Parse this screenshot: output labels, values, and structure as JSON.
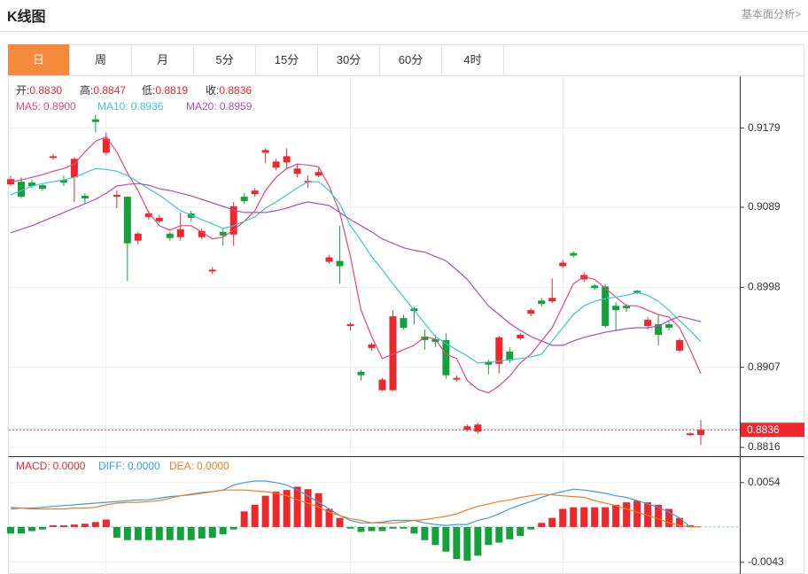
{
  "header": {
    "title": "K线图",
    "link": "基本面分析>"
  },
  "tabs": [
    "日",
    "周",
    "月",
    "5分",
    "15分",
    "30分",
    "60分",
    "4时"
  ],
  "active_tab": 0,
  "chart_data": [
    {
      "type": "candlestick",
      "info": [
        {
          "label": "开:",
          "value": "0.8830"
        },
        {
          "label": "高:",
          "value": "0.8847"
        },
        {
          "label": "低:",
          "value": "0.8819"
        },
        {
          "label": "收:",
          "value": "0.8836"
        }
      ],
      "up_color": "#f0262a",
      "down_color": "#13a23a",
      "ylim": [
        0.8806,
        0.9236
      ],
      "yticks": [
        0.9179,
        0.9089,
        0.8998,
        0.8907,
        0.8816
      ],
      "grid": true,
      "last_price": 0.8836,
      "candles": {
        "open": [
          0.9115,
          0.9118,
          0.9117,
          0.9114,
          0.9145,
          0.912,
          0.9123,
          0.9102,
          0.9189,
          0.9151,
          0.9101,
          0.9101,
          0.9051,
          0.9078,
          0.9073,
          0.9059,
          0.9055,
          0.9082,
          0.9055,
          0.9016,
          0.9061,
          0.9058,
          0.9101,
          0.9104,
          0.9151,
          0.9134,
          0.914,
          0.9127,
          0.9117,
          0.9125,
          0.9027,
          0.9028,
          0.8954,
          0.8902,
          0.8929,
          0.8881,
          0.8881,
          0.8963,
          0.8974,
          0.8942,
          0.8939,
          0.8938,
          0.8893,
          0.8836,
          0.8834,
          0.8913,
          0.8911,
          0.8925,
          0.894,
          0.8968,
          0.8983,
          0.8982,
          0.9022,
          0.9037,
          0.9007,
          0.9,
          0.8999,
          0.8977,
          0.8977,
          0.8994,
          0.8954,
          0.8956,
          0.8956,
          0.8926,
          0.883,
          0.883
        ],
        "high": [
          0.9125,
          0.9123,
          0.912,
          0.9116,
          0.915,
          0.9125,
          0.9146,
          0.9105,
          0.9194,
          0.9174,
          0.9108,
          0.9101,
          0.9061,
          0.9085,
          0.908,
          0.9061,
          0.9083,
          0.9085,
          0.9065,
          0.9021,
          0.9065,
          0.9095,
          0.9105,
          0.9111,
          0.9156,
          0.9144,
          0.9156,
          0.9139,
          0.9125,
          0.9133,
          0.9035,
          0.9068,
          0.8958,
          0.8904,
          0.8935,
          0.8895,
          0.8972,
          0.8967,
          0.8976,
          0.895,
          0.8944,
          0.8946,
          0.8898,
          0.8842,
          0.8844,
          0.8916,
          0.8943,
          0.893,
          0.8946,
          0.8974,
          0.8986,
          0.9008,
          0.9029,
          0.9039,
          0.9015,
          0.9002,
          0.9002,
          0.8981,
          0.8979,
          0.8995,
          0.8964,
          0.8967,
          0.8959,
          0.894,
          0.8833,
          0.8847
        ],
        "low": [
          0.9113,
          0.9099,
          0.9111,
          0.9108,
          0.9143,
          0.9113,
          0.9095,
          0.9093,
          0.9174,
          0.9148,
          0.9088,
          0.9005,
          0.9047,
          0.9075,
          0.9071,
          0.9051,
          0.9051,
          0.9073,
          0.9053,
          0.9013,
          0.9045,
          0.9045,
          0.9093,
          0.9101,
          0.9139,
          0.9131,
          0.9133,
          0.9123,
          0.9111,
          0.9123,
          0.9025,
          0.9002,
          0.8949,
          0.8892,
          0.8926,
          0.888,
          0.888,
          0.895,
          0.8956,
          0.8927,
          0.893,
          0.8894,
          0.8891,
          0.8834,
          0.8832,
          0.8899,
          0.89,
          0.8912,
          0.8938,
          0.8965,
          0.8976,
          0.898,
          0.902,
          0.9032,
          0.9004,
          0.8995,
          0.8952,
          0.8948,
          0.897,
          0.899,
          0.895,
          0.8932,
          0.8949,
          0.8924,
          0.8829,
          0.8819
        ],
        "close": [
          0.9121,
          0.9101,
          0.9113,
          0.911,
          0.9147,
          0.9117,
          0.9144,
          0.9099,
          0.9186,
          0.9167,
          0.9103,
          0.9048,
          0.9059,
          0.9082,
          0.9077,
          0.9054,
          0.9064,
          0.9077,
          0.9062,
          0.9018,
          0.9057,
          0.909,
          0.9096,
          0.9108,
          0.9154,
          0.9141,
          0.9147,
          0.9133,
          0.9119,
          0.9129,
          0.9032,
          0.9022,
          0.8956,
          0.8898,
          0.8933,
          0.8893,
          0.8965,
          0.8952,
          0.8971,
          0.8938,
          0.8936,
          0.8898,
          0.8895,
          0.884,
          0.8842,
          0.891,
          0.8941,
          0.8915,
          0.8944,
          0.8972,
          0.8979,
          0.8986,
          0.9026,
          0.9034,
          0.9012,
          0.8997,
          0.8954,
          0.8972,
          0.8974,
          0.8992,
          0.8961,
          0.8944,
          0.8952,
          0.8938,
          0.8832,
          0.8836
        ]
      },
      "series": [
        {
          "name": "MA5:",
          "last_label": "0.8900",
          "color": "#e5467a",
          "values": [
            0.9118,
            0.912,
            0.9123,
            0.9126,
            0.913,
            0.9133,
            0.9138,
            0.9152,
            0.9164,
            0.9169,
            0.9152,
            0.9128,
            0.9108,
            0.9083,
            0.9068,
            0.9063,
            0.9068,
            0.9068,
            0.9061,
            0.9053,
            0.9055,
            0.9063,
            0.9073,
            0.9085,
            0.9108,
            0.9123,
            0.9133,
            0.9138,
            0.9137,
            0.9135,
            0.9113,
            0.9083,
            0.9033,
            0.8972,
            0.8942,
            0.8917,
            0.8922,
            0.8927,
            0.8932,
            0.8942,
            0.8939,
            0.8922,
            0.8917,
            0.8892,
            0.8882,
            0.8878,
            0.8886,
            0.8897,
            0.8912,
            0.8922,
            0.8937,
            0.8952,
            0.8977,
            0.9002,
            0.901,
            0.9007,
            0.8997,
            0.8987,
            0.8977,
            0.8977,
            0.8972,
            0.8967,
            0.8964,
            0.8952,
            0.8927,
            0.89
          ]
        },
        {
          "name": "MA10:",
          "last_label": "0.8936",
          "color": "#3cc4d6",
          "values": [
            0.9103,
            0.9108,
            0.9113,
            0.9116,
            0.9118,
            0.912,
            0.9123,
            0.9128,
            0.9133,
            0.9132,
            0.913,
            0.9125,
            0.9118,
            0.911,
            0.9103,
            0.9094,
            0.9085,
            0.908,
            0.9075,
            0.907,
            0.9065,
            0.9068,
            0.9073,
            0.9078,
            0.9088,
            0.9095,
            0.9103,
            0.9111,
            0.9118,
            0.9118,
            0.9108,
            0.9093,
            0.9068,
            0.9051,
            0.9033,
            0.9018,
            0.9002,
            0.8987,
            0.8972,
            0.8957,
            0.8942,
            0.8934,
            0.8927,
            0.892,
            0.8912,
            0.8913,
            0.8914,
            0.8916,
            0.8917,
            0.8919,
            0.8922,
            0.8937,
            0.8952,
            0.8967,
            0.8977,
            0.8982,
            0.8985,
            0.8987,
            0.8989,
            0.8992,
            0.8989,
            0.8982,
            0.8972,
            0.896,
            0.8949,
            0.8936
          ]
        },
        {
          "name": "MA20:",
          "last_label": "0.8959",
          "color": "#b14cc3",
          "values": [
            0.906,
            0.9064,
            0.9068,
            0.9073,
            0.9078,
            0.9083,
            0.9088,
            0.9093,
            0.9098,
            0.9105,
            0.9113,
            0.9115,
            0.9116,
            0.9114,
            0.911,
            0.9108,
            0.9105,
            0.9102,
            0.9098,
            0.9094,
            0.909,
            0.9086,
            0.9083,
            0.9083,
            0.9083,
            0.9085,
            0.9088,
            0.9092,
            0.9095,
            0.9093,
            0.9091,
            0.9083,
            0.9075,
            0.9068,
            0.9061,
            0.9053,
            0.9048,
            0.9043,
            0.904,
            0.9038,
            0.9033,
            0.9028,
            0.9018,
            0.9007,
            0.8992,
            0.8977,
            0.8967,
            0.8957,
            0.8949,
            0.8942,
            0.8937,
            0.8932,
            0.8932,
            0.8937,
            0.8941,
            0.8944,
            0.8947,
            0.8949,
            0.8951,
            0.8952,
            0.8952,
            0.8954,
            0.896,
            0.8965,
            0.8962,
            0.8959
          ]
        }
      ]
    },
    {
      "type": "macd",
      "up_color": "#f0262a",
      "down_color": "#13a23a",
      "ylim": [
        -0.0054,
        0.0084
      ],
      "yticks": [
        0.0054,
        -0.0043
      ],
      "grid": true,
      "histogram": {
        "name": "MACD:",
        "last_label": "0.0000",
        "color": "#f0262a",
        "values": [
          -0.0008,
          -0.0008,
          -0.0005,
          -0.0003,
          0.0002,
          0.0002,
          0.0003,
          0.0004,
          0.0006,
          0.0009,
          -0.0013,
          -0.0016,
          -0.0016,
          -0.0016,
          -0.0016,
          -0.0016,
          -0.0016,
          -0.0016,
          -0.0014,
          -0.0013,
          -0.0009,
          -0.0003,
          0.0019,
          0.0027,
          0.0038,
          0.0043,
          0.0045,
          0.0049,
          0.0046,
          0.0041,
          0.0022,
          0.0011,
          -0.0002,
          -0.0006,
          -0.0005,
          -0.0005,
          -0.0002,
          -0.0002,
          -0.0008,
          -0.0016,
          -0.0022,
          -0.003,
          -0.0039,
          -0.0041,
          -0.0035,
          -0.0022,
          -0.0019,
          -0.0015,
          -0.0011,
          -0.0003,
          0.0005,
          0.0011,
          0.0022,
          0.0024,
          0.0024,
          0.0024,
          0.0024,
          0.0027,
          0.003,
          0.0032,
          0.003,
          0.0027,
          0.0022,
          0.0011,
          0.0002,
          0
        ]
      },
      "series": [
        {
          "name": "DIFF:",
          "last_label": "0.0000",
          "color": "#3d9be6",
          "values": [
            0.0022,
            0.0023,
            0.0023,
            0.0024,
            0.0025,
            0.0026,
            0.0027,
            0.0028,
            0.0029,
            0.003,
            0.0031,
            0.0032,
            0.0033,
            0.0033,
            0.0035,
            0.0037,
            0.0038,
            0.004,
            0.0042,
            0.0043,
            0.0045,
            0.0051,
            0.0054,
            0.0056,
            0.0056,
            0.0054,
            0.0051,
            0.0045,
            0.0038,
            0.003,
            0.0022,
            0.0014,
            0.0008,
            0.0005,
            0.0005,
            0.0006,
            0.0008,
            0.0008,
            0.0008,
            0.0005,
            0.0003,
            0.0002,
            0.0003,
            0.0003,
            0.0008,
            0.0011,
            0.0016,
            0.0022,
            0.0027,
            0.0031,
            0.0036,
            0.004,
            0.0043,
            0.0046,
            0.0045,
            0.0043,
            0.0041,
            0.0038,
            0.0036,
            0.0032,
            0.0028,
            0.0024,
            0.0018,
            0.0011,
            0,
            0
          ]
        },
        {
          "name": "DEA:",
          "last_label": "0.0000",
          "color": "#f07c22",
          "values": [
            0.0024,
            0.0023,
            0.0022,
            0.0022,
            0.0022,
            0.0022,
            0.0023,
            0.0023,
            0.0024,
            0.0027,
            0.0029,
            0.003,
            0.003,
            0.0031,
            0.0032,
            0.0035,
            0.0038,
            0.0039,
            0.0041,
            0.0043,
            0.0045,
            0.0045,
            0.0045,
            0.0044,
            0.0043,
            0.0041,
            0.0038,
            0.0033,
            0.0029,
            0.0024,
            0.0018,
            0.0014,
            0.001,
            0.0008,
            0.0005,
            0.0005,
            0.0005,
            0.0006,
            0.0008,
            0.0009,
            0.0011,
            0.0013,
            0.0016,
            0.0021,
            0.0025,
            0.0028,
            0.0031,
            0.0033,
            0.0036,
            0.0038,
            0.004,
            0.0039,
            0.0038,
            0.0037,
            0.0036,
            0.0032,
            0.0029,
            0.0026,
            0.0022,
            0.0018,
            0.0014,
            0.001,
            0.0005,
            0.0002,
            0,
            0
          ]
        }
      ]
    }
  ]
}
